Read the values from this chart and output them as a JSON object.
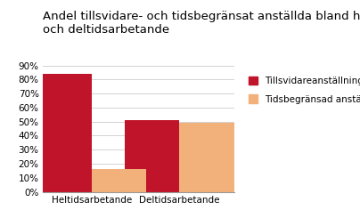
{
  "title": "Andel tillsvidare- och tidsbegränsat anställda bland hel-\noch deltidsarbetande",
  "categories": [
    "Heltidsarbetande",
    "Deltidsarbetande"
  ],
  "series": {
    "Tillsvidareanställning": [
      0.84,
      0.51
    ],
    "Tidsbegränsad anställning": [
      0.16,
      0.49
    ]
  },
  "colors": {
    "Tillsvidareanställning": "#C0142A",
    "Tidsbegränsad anställning": "#F2B07A"
  },
  "ylim": [
    0,
    0.9
  ],
  "yticks": [
    0.0,
    0.1,
    0.2,
    0.3,
    0.4,
    0.5,
    0.6,
    0.7,
    0.8,
    0.9
  ],
  "ytick_labels": [
    "0%",
    "10%",
    "20%",
    "30%",
    "40%",
    "50%",
    "60%",
    "70%",
    "80%",
    "90%"
  ],
  "background_color": "#ffffff",
  "title_fontsize": 9.5,
  "bar_width": 0.28,
  "group_positions": [
    0.25,
    0.7
  ]
}
